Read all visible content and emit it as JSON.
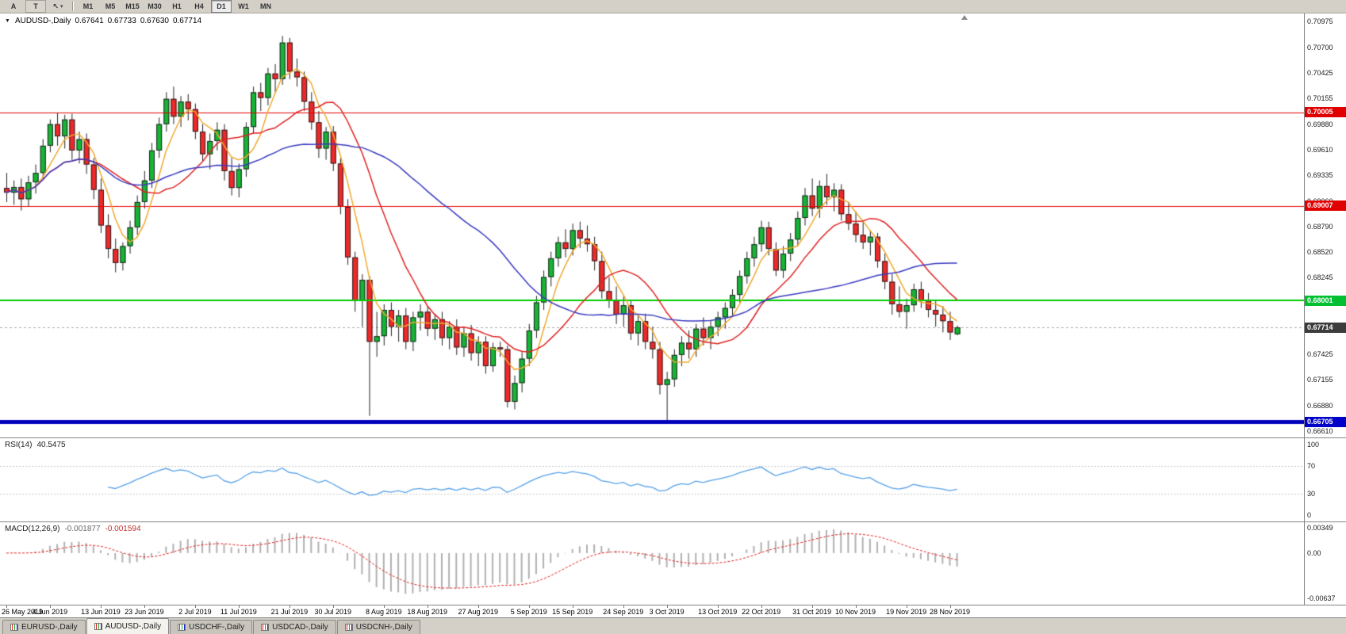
{
  "toolbar": {
    "left_buttons": [
      {
        "label": "A",
        "name": "annotation-tool-button"
      },
      {
        "label": "T",
        "name": "text-tool-button"
      }
    ],
    "cursor_button": {
      "icon": "↖",
      "caret": "▾"
    },
    "timeframes": [
      {
        "label": "M1"
      },
      {
        "label": "M5"
      },
      {
        "label": "M15"
      },
      {
        "label": "M30"
      },
      {
        "label": "H1"
      },
      {
        "label": "H4"
      },
      {
        "label": "D1",
        "active": true
      },
      {
        "label": "W1"
      },
      {
        "label": "MN"
      }
    ]
  },
  "header": {
    "symbol": "AUDUSD-,Daily",
    "open": "0.67641",
    "high": "0.67733",
    "low": "0.67630",
    "close": "0.67714"
  },
  "chart": {
    "price_axis_labels": [
      "0.70975",
      "0.70700",
      "0.70425",
      "0.70155",
      "0.69880",
      "0.69610",
      "0.69335",
      "0.69060",
      "0.68790",
      "0.68520",
      "0.68245",
      "0.67970",
      "0.67700",
      "0.67425",
      "0.67155",
      "0.66880",
      "0.66610"
    ],
    "price_badges": [
      {
        "text": "0.70005",
        "value": 0.70005,
        "bg": "#e00000"
      },
      {
        "text": "0.69007",
        "value": 0.69007,
        "bg": "#e00000"
      },
      {
        "text": "0.68001",
        "value": 0.68001,
        "bg": "#00c032"
      },
      {
        "text": "0.67714",
        "value": 0.67714,
        "bg": "#3c3c3c"
      },
      {
        "text": "0.66705",
        "value": 0.66705,
        "bg": "#0000c8"
      }
    ],
    "current_price": 0.67714
  },
  "chart_data": {
    "type": "candlestick",
    "symbol": "AUDUSD",
    "timeframe": "Daily",
    "title": "AUDUSD Daily candlestick chart with SMA overlays, RSI and MACD",
    "y_range": [
      0.6654,
      0.7106
    ],
    "up_color": "#16b535",
    "down_color": "#ef2929",
    "outline_color": "#222222",
    "x_labels": [
      {
        "text": "26 May 2019",
        "index": 0
      },
      {
        "text": "4 Jun 2019",
        "index": 6
      },
      {
        "text": "13 Jun 2019",
        "index": 13
      },
      {
        "text": "23 Jun 2019",
        "index": 19
      },
      {
        "text": "2 Jul 2019",
        "index": 26
      },
      {
        "text": "11 Jul 2019",
        "index": 32
      },
      {
        "text": "21 Jul 2019",
        "index": 39
      },
      {
        "text": "30 Jul 2019",
        "index": 45
      },
      {
        "text": "8 Aug 2019",
        "index": 52
      },
      {
        "text": "18 Aug 2019",
        "index": 58
      },
      {
        "text": "27 Aug 2019",
        "index": 65
      },
      {
        "text": "5 Sep 2019",
        "index": 72
      },
      {
        "text": "15 Sep 2019",
        "index": 78
      },
      {
        "text": "24 Sep 2019",
        "index": 85
      },
      {
        "text": "3 Oct 2019",
        "index": 91
      },
      {
        "text": "13 Oct 2019",
        "index": 98
      },
      {
        "text": "22 Oct 2019",
        "index": 104
      },
      {
        "text": "31 Oct 2019",
        "index": 111
      },
      {
        "text": "10 Nov 2019",
        "index": 117
      },
      {
        "text": "19 Nov 2019",
        "index": 124
      },
      {
        "text": "28 Nov 2019",
        "index": 130
      }
    ],
    "candles": [
      [
        0.692,
        0.6936,
        0.6905,
        0.6915
      ],
      [
        0.6915,
        0.6928,
        0.6902,
        0.6921
      ],
      [
        0.6921,
        0.693,
        0.6896,
        0.6908
      ],
      [
        0.6908,
        0.6933,
        0.69,
        0.6926
      ],
      [
        0.6926,
        0.6945,
        0.6914,
        0.6936
      ],
      [
        0.6936,
        0.6972,
        0.693,
        0.6965
      ],
      [
        0.6965,
        0.6993,
        0.6958,
        0.6988
      ],
      [
        0.6988,
        0.7,
        0.6965,
        0.6975
      ],
      [
        0.6975,
        0.6998,
        0.6962,
        0.6993
      ],
      [
        0.6993,
        0.6999,
        0.695,
        0.696
      ],
      [
        0.696,
        0.698,
        0.6946,
        0.6972
      ],
      [
        0.6972,
        0.6978,
        0.6935,
        0.6945
      ],
      [
        0.6945,
        0.6952,
        0.6908,
        0.6918
      ],
      [
        0.6918,
        0.693,
        0.6872,
        0.688
      ],
      [
        0.688,
        0.6892,
        0.6845,
        0.6855
      ],
      [
        0.6855,
        0.6866,
        0.683,
        0.684
      ],
      [
        0.684,
        0.6862,
        0.6832,
        0.6858
      ],
      [
        0.6858,
        0.6885,
        0.685,
        0.6878
      ],
      [
        0.6878,
        0.6912,
        0.687,
        0.6905
      ],
      [
        0.6905,
        0.6938,
        0.6898,
        0.6928
      ],
      [
        0.6928,
        0.6968,
        0.692,
        0.696
      ],
      [
        0.696,
        0.6995,
        0.6952,
        0.6988
      ],
      [
        0.6988,
        0.7022,
        0.698,
        0.7015
      ],
      [
        0.7015,
        0.7028,
        0.6988,
        0.6996
      ],
      [
        0.6996,
        0.7018,
        0.6985,
        0.7012
      ],
      [
        0.7012,
        0.702,
        0.6992,
        0.7004
      ],
      [
        0.7004,
        0.701,
        0.6972,
        0.698
      ],
      [
        0.698,
        0.6988,
        0.6948,
        0.6956
      ],
      [
        0.6956,
        0.6978,
        0.694,
        0.697
      ],
      [
        0.697,
        0.699,
        0.696,
        0.6982
      ],
      [
        0.6982,
        0.6988,
        0.6928,
        0.6938
      ],
      [
        0.6938,
        0.6952,
        0.6912,
        0.692
      ],
      [
        0.692,
        0.6946,
        0.691,
        0.694
      ],
      [
        0.694,
        0.699,
        0.6932,
        0.6985
      ],
      [
        0.6985,
        0.7028,
        0.6978,
        0.7022
      ],
      [
        0.7022,
        0.7032,
        0.7002,
        0.7016
      ],
      [
        0.7016,
        0.7048,
        0.7008,
        0.7042
      ],
      [
        0.7042,
        0.7052,
        0.7022,
        0.7036
      ],
      [
        0.7036,
        0.7082,
        0.703,
        0.7075
      ],
      [
        0.7075,
        0.708,
        0.7036,
        0.7044
      ],
      [
        0.7044,
        0.7058,
        0.7028,
        0.7038
      ],
      [
        0.7038,
        0.7044,
        0.7002,
        0.7012
      ],
      [
        0.7012,
        0.7022,
        0.6982,
        0.699
      ],
      [
        0.699,
        0.7002,
        0.6952,
        0.6962
      ],
      [
        0.6962,
        0.6985,
        0.695,
        0.698
      ],
      [
        0.698,
        0.6986,
        0.6938,
        0.6946
      ],
      [
        0.6946,
        0.6952,
        0.6892,
        0.69
      ],
      [
        0.69,
        0.6908,
        0.6838,
        0.6846
      ],
      [
        0.6846,
        0.6852,
        0.6788,
        0.68
      ],
      [
        0.68,
        0.6828,
        0.6772,
        0.6822
      ],
      [
        0.6822,
        0.6826,
        0.6677,
        0.6756
      ],
      [
        0.6756,
        0.6788,
        0.674,
        0.6762
      ],
      [
        0.6762,
        0.6796,
        0.6752,
        0.679
      ],
      [
        0.679,
        0.6798,
        0.6762,
        0.6772
      ],
      [
        0.6772,
        0.679,
        0.6756,
        0.6784
      ],
      [
        0.6784,
        0.6792,
        0.6748,
        0.6756
      ],
      [
        0.6756,
        0.6788,
        0.6746,
        0.6782
      ],
      [
        0.6782,
        0.6796,
        0.6768,
        0.6788
      ],
      [
        0.6788,
        0.6794,
        0.6762,
        0.677
      ],
      [
        0.677,
        0.6786,
        0.6758,
        0.678
      ],
      [
        0.678,
        0.6788,
        0.6752,
        0.676
      ],
      [
        0.676,
        0.6778,
        0.6748,
        0.6772
      ],
      [
        0.6772,
        0.678,
        0.6742,
        0.675
      ],
      [
        0.675,
        0.6772,
        0.674,
        0.6765
      ],
      [
        0.6765,
        0.6774,
        0.6736,
        0.6744
      ],
      [
        0.6744,
        0.6762,
        0.673,
        0.6756
      ],
      [
        0.6756,
        0.6762,
        0.6722,
        0.673
      ],
      [
        0.673,
        0.6755,
        0.6724,
        0.675
      ],
      [
        0.675,
        0.6756,
        0.674,
        0.6748
      ],
      [
        0.6748,
        0.6752,
        0.6686,
        0.6692
      ],
      [
        0.6692,
        0.672,
        0.6684,
        0.6712
      ],
      [
        0.6712,
        0.6745,
        0.6702,
        0.6738
      ],
      [
        0.6738,
        0.6775,
        0.673,
        0.6768
      ],
      [
        0.6768,
        0.6805,
        0.676,
        0.6798
      ],
      [
        0.6798,
        0.6832,
        0.679,
        0.6825
      ],
      [
        0.6825,
        0.6852,
        0.6815,
        0.6845
      ],
      [
        0.6845,
        0.6868,
        0.6836,
        0.6862
      ],
      [
        0.6862,
        0.6876,
        0.6846,
        0.6855
      ],
      [
        0.6855,
        0.6882,
        0.6848,
        0.6875
      ],
      [
        0.6875,
        0.6884,
        0.6856,
        0.6866
      ],
      [
        0.6866,
        0.688,
        0.6852,
        0.686
      ],
      [
        0.686,
        0.6868,
        0.6832,
        0.6842
      ],
      [
        0.6842,
        0.6852,
        0.6802,
        0.681
      ],
      [
        0.681,
        0.6825,
        0.6792,
        0.68
      ],
      [
        0.68,
        0.6815,
        0.6775,
        0.6785
      ],
      [
        0.6785,
        0.6805,
        0.6772,
        0.6795
      ],
      [
        0.6795,
        0.68,
        0.6758,
        0.6765
      ],
      [
        0.6765,
        0.6785,
        0.6752,
        0.6778
      ],
      [
        0.6778,
        0.6786,
        0.6748,
        0.6756
      ],
      [
        0.6756,
        0.6772,
        0.6738,
        0.6748
      ],
      [
        0.6748,
        0.6756,
        0.67,
        0.671
      ],
      [
        0.671,
        0.6724,
        0.667,
        0.6716
      ],
      [
        0.6716,
        0.6748,
        0.6708,
        0.6742
      ],
      [
        0.6742,
        0.6762,
        0.673,
        0.6755
      ],
      [
        0.6755,
        0.6768,
        0.6738,
        0.6748
      ],
      [
        0.6748,
        0.6775,
        0.674,
        0.677
      ],
      [
        0.677,
        0.6782,
        0.6752,
        0.676
      ],
      [
        0.676,
        0.6778,
        0.6748,
        0.6772
      ],
      [
        0.6772,
        0.6788,
        0.6762,
        0.6782
      ],
      [
        0.6782,
        0.6798,
        0.677,
        0.6792
      ],
      [
        0.6792,
        0.6812,
        0.6784,
        0.6806
      ],
      [
        0.6806,
        0.6832,
        0.6798,
        0.6826
      ],
      [
        0.6826,
        0.6852,
        0.6818,
        0.6845
      ],
      [
        0.6845,
        0.6868,
        0.6836,
        0.686
      ],
      [
        0.686,
        0.6885,
        0.6852,
        0.6878
      ],
      [
        0.6878,
        0.6884,
        0.6848,
        0.6855
      ],
      [
        0.6855,
        0.6862,
        0.6826,
        0.6832
      ],
      [
        0.6832,
        0.6858,
        0.6824,
        0.685
      ],
      [
        0.685,
        0.6872,
        0.6842,
        0.6865
      ],
      [
        0.6865,
        0.6895,
        0.6858,
        0.6888
      ],
      [
        0.6888,
        0.692,
        0.688,
        0.6912
      ],
      [
        0.6912,
        0.693,
        0.689,
        0.6898
      ],
      [
        0.6898,
        0.6928,
        0.6888,
        0.6922
      ],
      [
        0.6922,
        0.6935,
        0.6902,
        0.691
      ],
      [
        0.691,
        0.6925,
        0.6895,
        0.6918
      ],
      [
        0.6918,
        0.6924,
        0.6885,
        0.6892
      ],
      [
        0.6892,
        0.6905,
        0.6875,
        0.6882
      ],
      [
        0.6882,
        0.6895,
        0.6862,
        0.687
      ],
      [
        0.687,
        0.6885,
        0.6855,
        0.6862
      ],
      [
        0.6862,
        0.6875,
        0.6848,
        0.6868
      ],
      [
        0.6868,
        0.6872,
        0.6835,
        0.6842
      ],
      [
        0.6842,
        0.685,
        0.6812,
        0.682
      ],
      [
        0.682,
        0.6828,
        0.6785,
        0.6796
      ],
      [
        0.6796,
        0.6815,
        0.6782,
        0.6788
      ],
      [
        0.6788,
        0.6802,
        0.677,
        0.6795
      ],
      [
        0.6795,
        0.6818,
        0.6788,
        0.6812
      ],
      [
        0.6812,
        0.682,
        0.6792,
        0.68
      ],
      [
        0.68,
        0.6808,
        0.6782,
        0.679
      ],
      [
        0.679,
        0.68,
        0.6772,
        0.6785
      ],
      [
        0.6785,
        0.6794,
        0.6766,
        0.6778
      ],
      [
        0.6778,
        0.6788,
        0.6758,
        0.6766
      ],
      [
        0.67641,
        0.67733,
        0.6763,
        0.67714
      ]
    ],
    "overlays": {
      "horizontal_lines": [
        {
          "price": 0.70005,
          "color": "#e60000",
          "width": 1
        },
        {
          "price": 0.69007,
          "color": "#e60000",
          "width": 1
        },
        {
          "price": 0.68001,
          "color": "#00cc00",
          "width": 2
        },
        {
          "price": 0.66705,
          "color": "#0000bb",
          "width": 5
        }
      ],
      "moving_averages": [
        {
          "period": 5,
          "type": "sma",
          "color": "#efa92f"
        },
        {
          "period": 13,
          "type": "sma",
          "color": "#e02020"
        },
        {
          "period": 34,
          "type": "sma",
          "color": "#3939c0"
        }
      ]
    }
  },
  "rsi": {
    "label": "RSI(14)",
    "value": "40.5475",
    "levels": [
      30,
      70
    ],
    "range": [
      0,
      100
    ],
    "color": "#55a0e8",
    "axis": [
      {
        "text": "100",
        "value": 100
      },
      {
        "text": "70",
        "value": 70
      },
      {
        "text": "30",
        "value": 30
      },
      {
        "text": "0",
        "value": 0
      }
    ]
  },
  "macd": {
    "label": "MACD(12,26,9)",
    "main_value": "-0.001877",
    "signal_value": "-0.001594",
    "scale": [
      -0.0072,
      0.0043
    ],
    "hist_color": "#b0b0b0",
    "signal_color": "#e02020",
    "axis": [
      {
        "text": "0.00349",
        "value": 0.00349
      },
      {
        "text": "0.00",
        "value": 0
      },
      {
        "text": "-0.00637",
        "value": -0.00637
      }
    ]
  },
  "tabs": [
    {
      "label": "EURUSD-,Daily"
    },
    {
      "label": "AUDUSD-,Daily",
      "active": true
    },
    {
      "label": "USDCHF-,Daily"
    },
    {
      "label": "USDCAD-,Daily"
    },
    {
      "label": "USDCNH-,Daily"
    }
  ]
}
